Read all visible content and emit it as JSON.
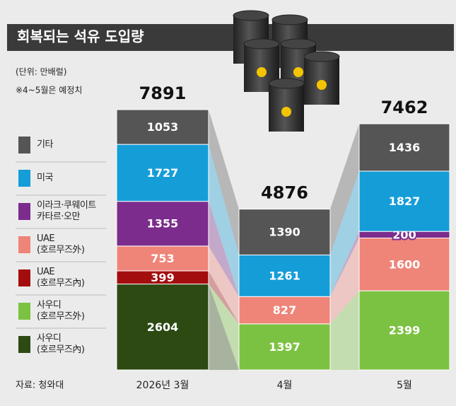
{
  "chart_data": {
    "type": "stacked-bar",
    "title": "회복되는 석유 도입량",
    "unit_note": "(단위: 만배럴)",
    "note": "※4~5월은 예정치",
    "source": "자료: 청와대",
    "categories": [
      "2026년 3월",
      "4월",
      "5월"
    ],
    "totals": [
      7891,
      4876,
      7462
    ],
    "series": [
      {
        "name": "사우디\n(호르무즈內)",
        "color": "#2c4a12",
        "values": [
          2604,
          null,
          null
        ]
      },
      {
        "name": "사우디\n(호르무즈外)",
        "color": "#7cc242",
        "values": [
          null,
          1397,
          2399
        ]
      },
      {
        "name": "UAE\n(호르무즈內)",
        "color": "#a30d0d",
        "values": [
          399,
          null,
          null
        ]
      },
      {
        "name": "UAE\n(호르무즈外)",
        "color": "#ef8478",
        "values": [
          753,
          827,
          1600
        ]
      },
      {
        "name": "이라크·쿠웨이트\n카타르·오만",
        "color": "#7b2c8c",
        "values": [
          1355,
          null,
          200
        ]
      },
      {
        "name": "미국",
        "color": "#159dd8",
        "values": [
          1727,
          1261,
          1827
        ]
      },
      {
        "name": "기타",
        "color": "#555555",
        "values": [
          1053,
          1390,
          1436
        ]
      }
    ]
  }
}
